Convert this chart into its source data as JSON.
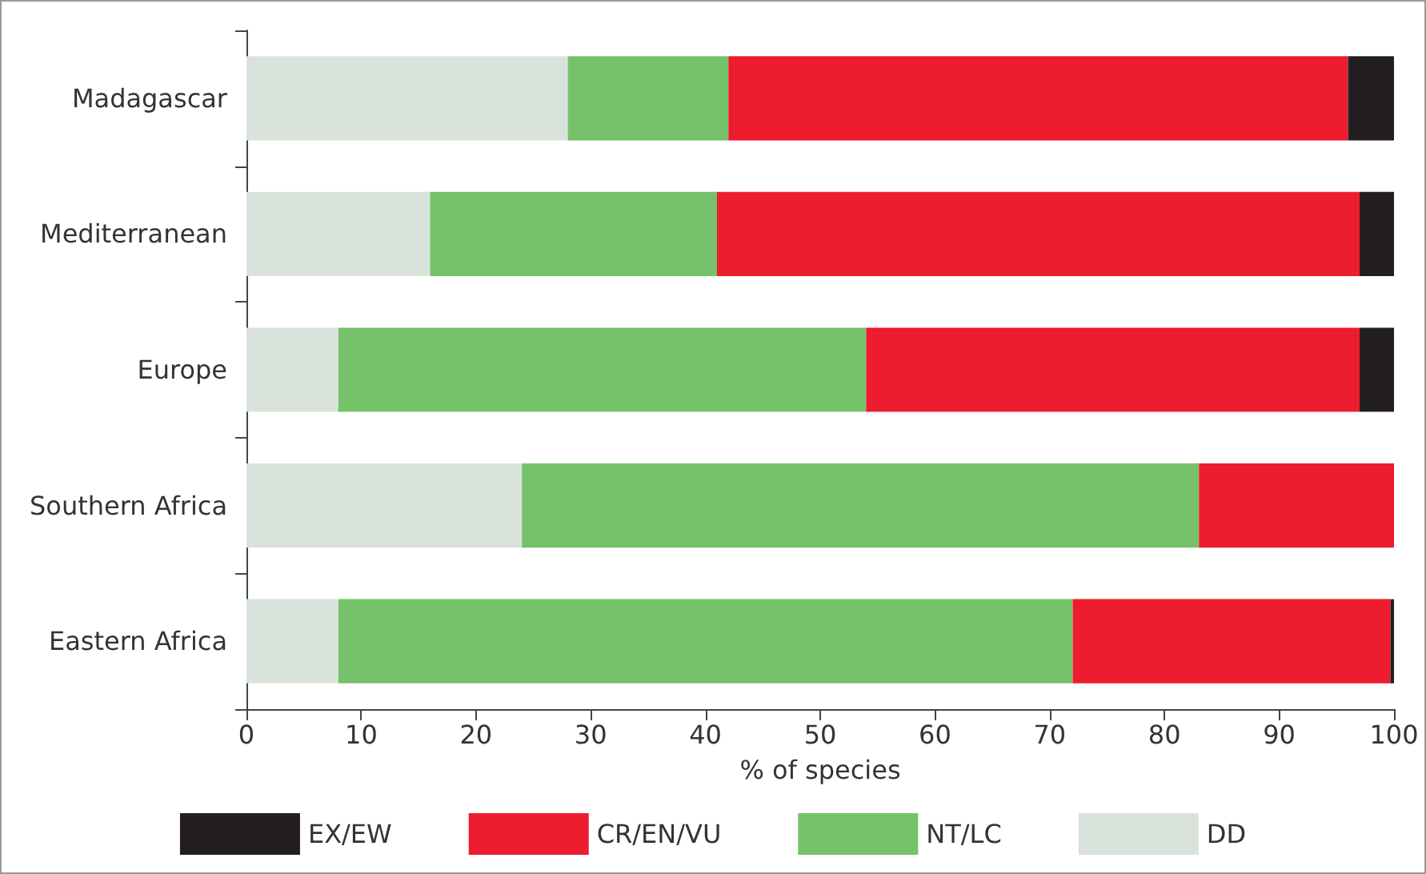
{
  "chart_data": {
    "type": "bar",
    "orientation": "horizontal",
    "stacked": true,
    "xlabel": "% of species",
    "categories": [
      "Madagascar",
      "Mediterranean",
      "Europe",
      "Southern Africa",
      "Eastern Africa"
    ],
    "series": [
      {
        "name": "DD",
        "color": "#d9e3dc",
        "values": [
          28,
          16,
          8,
          24,
          8
        ]
      },
      {
        "name": "NT/LC",
        "color": "#76c26b",
        "values": [
          14,
          25,
          46,
          59,
          64
        ]
      },
      {
        "name": "CR/EN/VU",
        "color": "#ed1c2e",
        "values": [
          54,
          56,
          43,
          17,
          27.7
        ]
      },
      {
        "name": "EX/EW",
        "color": "#231f20",
        "values": [
          4,
          3,
          3,
          0,
          0.3
        ]
      }
    ],
    "xlim": [
      0,
      100
    ],
    "xticks": [
      0,
      10,
      20,
      30,
      40,
      50,
      60,
      70,
      80,
      90,
      100
    ],
    "grid": false,
    "legend": "bottom"
  }
}
